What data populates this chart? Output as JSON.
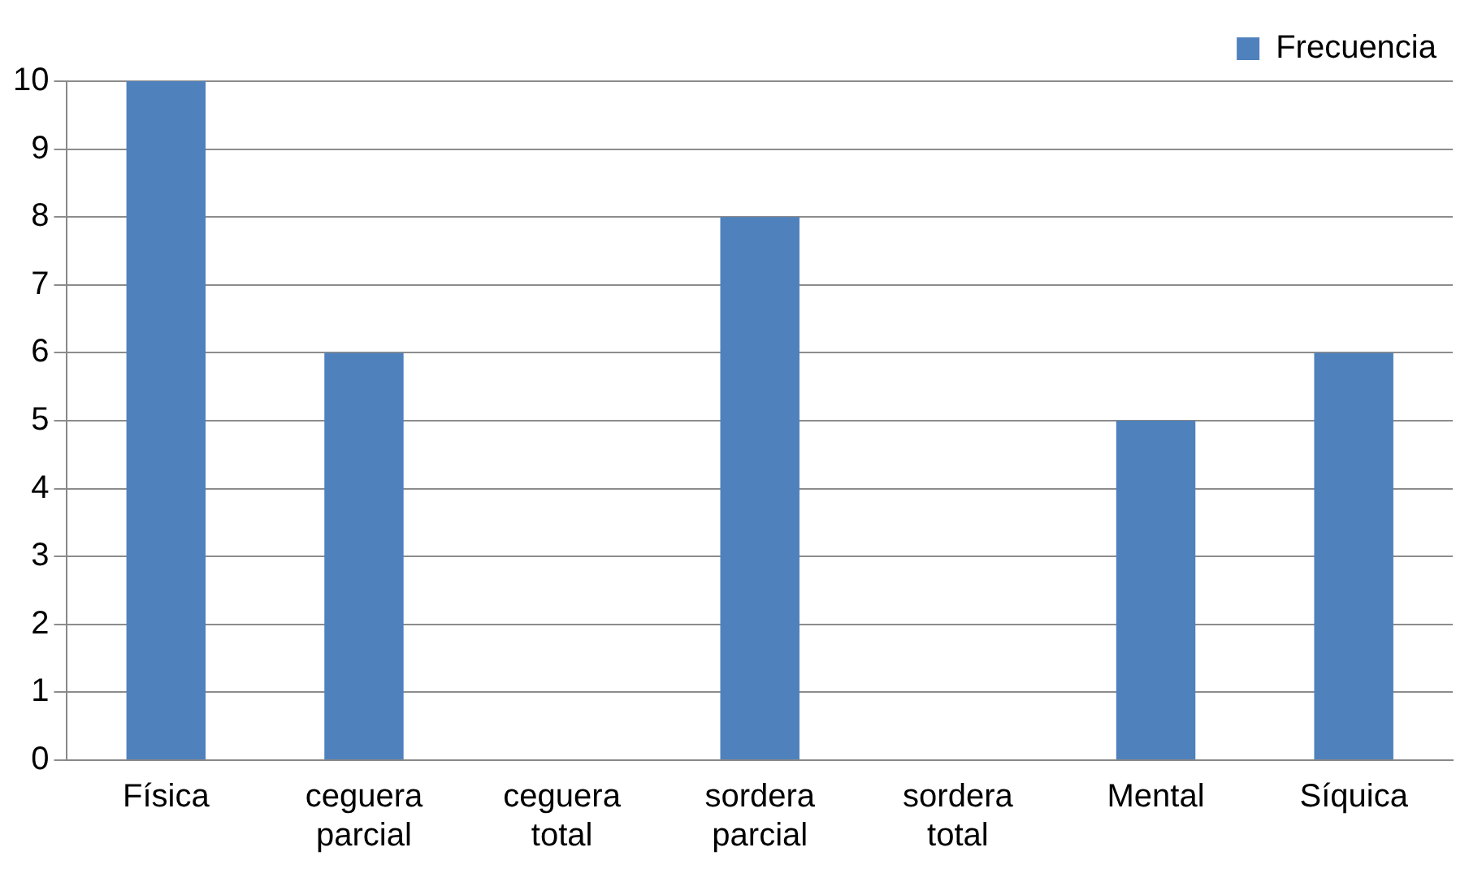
{
  "chart_data": {
    "type": "bar",
    "categories": [
      "Física",
      "ceguera parcial",
      "ceguera total",
      "sordera parcial",
      "sordera total",
      "Mental",
      "Síquica"
    ],
    "series": [
      {
        "name": "Frecuencia",
        "color": "#4f81bd",
        "values": [
          10,
          6,
          0,
          8,
          0,
          5,
          6
        ]
      }
    ],
    "ylim": [
      0,
      10
    ],
    "yticks": [
      0,
      1,
      2,
      3,
      4,
      5,
      6,
      7,
      8,
      9,
      10
    ],
    "grid": "y",
    "legend": "top right"
  }
}
